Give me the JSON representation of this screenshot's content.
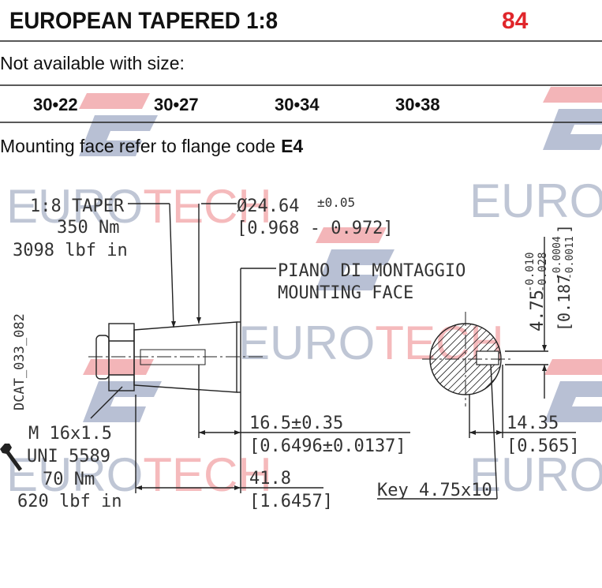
{
  "header": {
    "title": "EUROPEAN TAPERED 1:8",
    "code": "84"
  },
  "availability": {
    "note": "Not available with size:",
    "sizes": [
      "30•22",
      "30•27",
      "30•34",
      "30•38"
    ]
  },
  "mounting": {
    "text": "Mounting face refer to flange code",
    "code": "E4"
  },
  "watermark": {
    "brand": "EURO",
    "accent": "TECH"
  },
  "drawing": {
    "taper": "1:8 TAPER",
    "taper_torque_nm": "350 Nm",
    "taper_torque_lbf": "3098 lbf in",
    "diameter": "Ø24.64",
    "diameter_tol": "±0.05",
    "diameter_in": "[0.968 - 0.972]",
    "face_it": "PIANO DI MONTAGGIO",
    "face_en": "MOUNTING FACE",
    "drawing_code": "DCAT_033_082",
    "thread": "M 16x1.5",
    "thread_std": "UNI 5589",
    "nut_torque_nm": "70 Nm",
    "nut_torque_lbf": "620 lbf in",
    "length_face": "16.5±0.35",
    "length_face_in": "[0.6496±0.0137]",
    "length_total": "41.8",
    "length_total_in": "[1.6457]",
    "key": "Key 4.75x10",
    "key_height": "14.35",
    "key_height_in": "[0.565]",
    "key_width": "4.75",
    "key_width_tol_upper": "-0.010",
    "key_width_tol_lower": "-0.028",
    "key_width_in": "[0.187",
    "key_width_in_tol_upper": "-0.0004",
    "key_width_in_tol_lower": "-0.0011",
    "key_width_in_close": "]"
  }
}
